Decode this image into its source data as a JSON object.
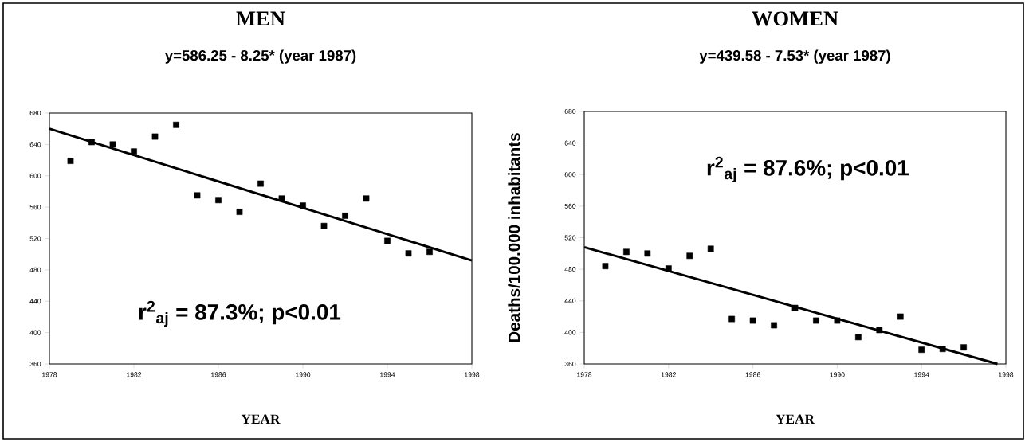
{
  "chart_data": [
    {
      "type": "scatter",
      "title": "MEN",
      "subtitle": "y=586.25 - 8.25* (year 1987)",
      "xlabel": "YEAR",
      "annotations": [
        "r$^{2}$$_{aj}$ = 87.3%; p<0.01"
      ],
      "x": [
        1979,
        1980,
        1981,
        1982,
        1983,
        1984,
        1985,
        1986,
        1987,
        1988,
        1989,
        1990,
        1991,
        1992,
        1993,
        1994,
        1995,
        1996
      ],
      "series": [
        {
          "color": "#000000",
          "values": [
            619,
            643,
            640,
            631,
            650,
            665,
            575,
            569,
            554,
            590,
            571,
            562,
            536,
            549,
            571,
            517,
            501,
            503
          ]
        },
        {
          "type": "line",
          "color": "#000000",
          "marker": "none",
          "x": [
            1978,
            1998
          ],
          "values": [
            660,
            492
          ]
        }
      ],
      "marker": "square",
      "xlim": [
        1978,
        1998
      ],
      "ylim": [
        360,
        680
      ],
      "xticks": [
        1978,
        1982,
        1986,
        1990,
        1994,
        1998
      ],
      "yticks": [
        360,
        400,
        440,
        480,
        520,
        560,
        600,
        640,
        680
      ]
    },
    {
      "type": "scatter",
      "title": "WOMEN",
      "subtitle": "y=439.58 - 7.53* (year 1987)",
      "xlabel": "YEAR",
      "ylabel": "Deaths/100.000 inhabitants",
      "annotations": [
        "r$^{2}$$_{aj}$ = 87.6%; p<0.01"
      ],
      "x": [
        1979,
        1980,
        1981,
        1982,
        1983,
        1984,
        1985,
        1986,
        1987,
        1988,
        1989,
        1990,
        1991,
        1992,
        1993,
        1994,
        1995,
        1996
      ],
      "series": [
        {
          "color": "#000000",
          "values": [
            484,
            502,
            500,
            481,
            497,
            506,
            417,
            415,
            409,
            431,
            415,
            415,
            394,
            403,
            420,
            378,
            379,
            381
          ]
        },
        {
          "type": "line",
          "color": "#000000",
          "marker": "none",
          "x": [
            1978,
            1997.6
          ],
          "values": [
            508,
            360
          ]
        }
      ],
      "marker": "square",
      "xlim": [
        1978,
        1998
      ],
      "ylim": [
        360,
        680
      ],
      "xticks": [
        1978,
        1982,
        1986,
        1990,
        1994,
        1998
      ],
      "yticks": [
        360,
        400,
        440,
        480,
        520,
        560,
        600,
        640,
        680
      ]
    }
  ]
}
